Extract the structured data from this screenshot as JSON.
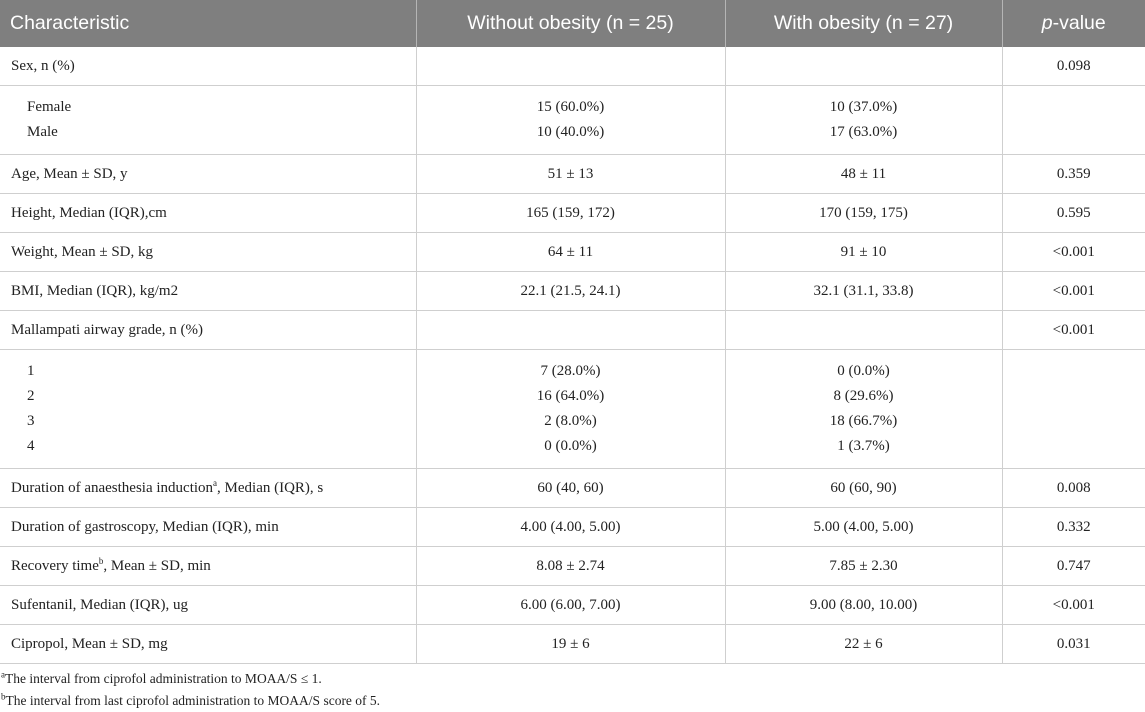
{
  "header": {
    "characteristic": "Characteristic",
    "without": "Without obesity (n = 25)",
    "with": "With obesity (n = 27)",
    "p_italic": "p",
    "p_rest": "-value"
  },
  "rows": {
    "sex": {
      "label": "Sex, n (%)",
      "without": "",
      "with": "",
      "p": "0.098"
    },
    "sex_group": {
      "labels": [
        "Female",
        "Male"
      ],
      "without": [
        "15 (60.0%)",
        "10 (40.0%)"
      ],
      "with": [
        "10 (37.0%)",
        "17 (63.0%)"
      ]
    },
    "age": {
      "label": "Age, Mean ± SD, y",
      "without": "51 ± 13",
      "with": "48 ± 11",
      "p": "0.359"
    },
    "height": {
      "label": "Height, Median (IQR),cm",
      "without": "165 (159, 172)",
      "with": "170 (159, 175)",
      "p": "0.595"
    },
    "weight": {
      "label": "Weight, Mean ± SD, kg",
      "without": "64 ± 11",
      "with": "91 ± 10",
      "p": "<0.001"
    },
    "bmi": {
      "label": "BMI, Median (IQR), kg/m2",
      "without": "22.1 (21.5, 24.1)",
      "with": "32.1 (31.1, 33.8)",
      "p": "<0.001"
    },
    "mallampati": {
      "label": "Mallampati airway grade, n (%)",
      "without": "",
      "with": "",
      "p": "<0.001"
    },
    "mallampati_group": {
      "labels": [
        "1",
        "2",
        "3",
        "4"
      ],
      "without": [
        "7 (28.0%)",
        "16 (64.0%)",
        "2 (8.0%)",
        "0 (0.0%)"
      ],
      "with": [
        "0 (0.0%)",
        "8 (29.6%)",
        "18 (66.7%)",
        "1 (3.7%)"
      ]
    },
    "induction": {
      "label_pre": "Duration of anaesthesia induction",
      "label_sup": "a",
      "label_post": ", Median (IQR), s",
      "without": "60 (40, 60)",
      "with": "60 (60, 90)",
      "p": "0.008"
    },
    "gastroscopy": {
      "label": "Duration of gastroscopy, Median (IQR), min",
      "without": "4.00 (4.00, 5.00)",
      "with": "5.00 (4.00, 5.00)",
      "p": "0.332"
    },
    "recovery": {
      "label_pre": "Recovery time",
      "label_sup": "b",
      "label_post": ", Mean ± SD, min",
      "without": "8.08 ± 2.74",
      "with": "7.85 ± 2.30",
      "p": "0.747"
    },
    "sufentanil": {
      "label": "Sufentanil, Median (IQR), ug",
      "without": "6.00 (6.00, 7.00)",
      "with": "9.00 (8.00, 10.00)",
      "p": "<0.001"
    },
    "cipropol": {
      "label": "Cipropol, Mean ± SD, mg",
      "without": "19 ± 6",
      "with": "22 ± 6",
      "p": "0.031"
    }
  },
  "footnotes": [
    {
      "mark": "a",
      "text": "The interval from ciprofol administration to MOAA/S ≤ 1."
    },
    {
      "mark": "b",
      "text": "The interval from last ciprofol administration to MOAA/S score of 5."
    }
  ]
}
